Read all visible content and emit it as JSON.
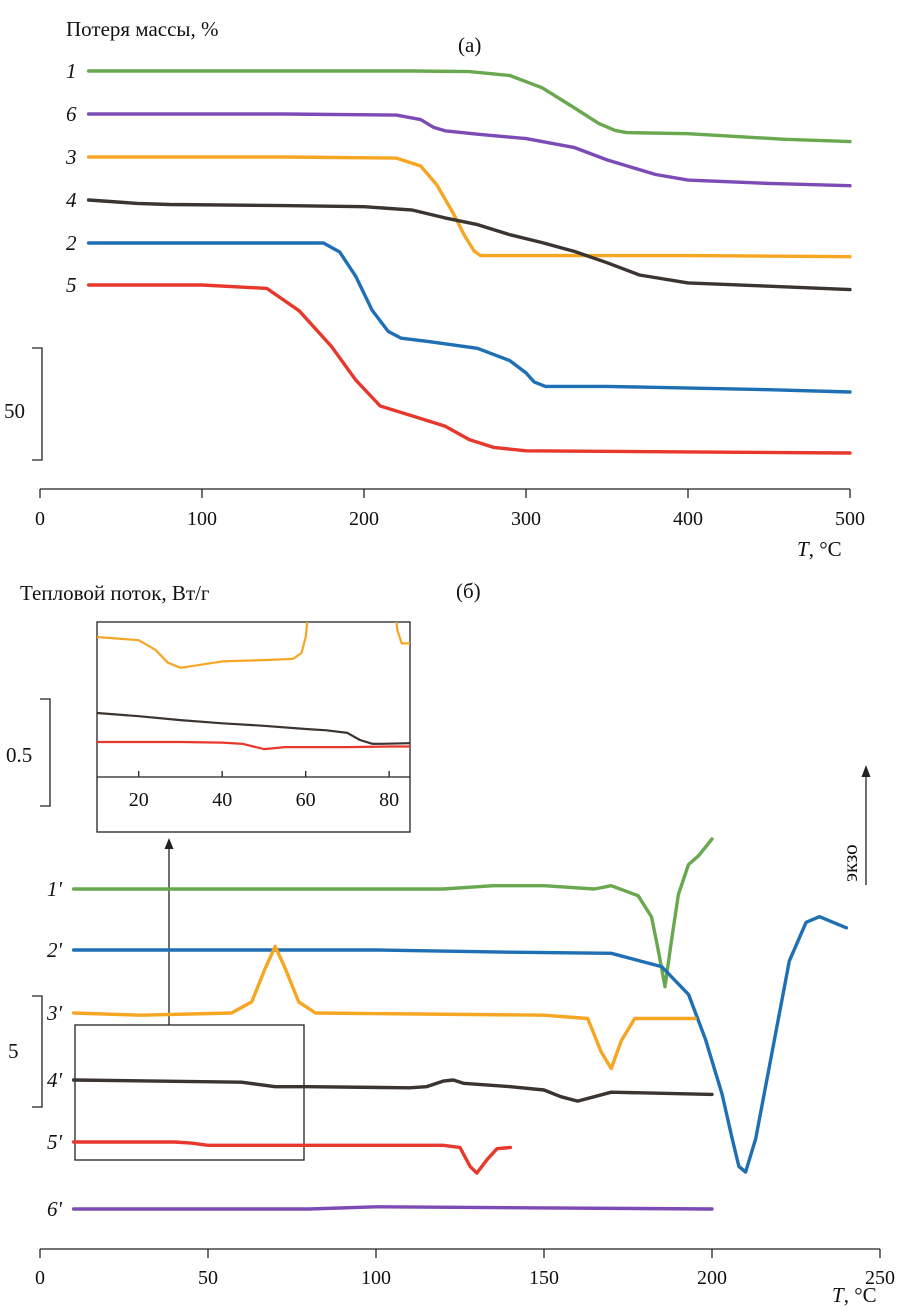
{
  "colors": {
    "green": "#6aa84f",
    "purple": "#7c4bb6",
    "orange": "#f6a623",
    "black": "#3b3431",
    "blue": "#1f6fb4",
    "red": "#e8372b"
  },
  "chart_data": [
    {
      "panel": "a",
      "type": "line",
      "panel_label": "(а)",
      "ylabel": "Потеря массы, %",
      "xlabel_var": "T",
      "xlabel_unit": ", °C",
      "xlim": [
        0,
        500
      ],
      "xticks": [
        0,
        100,
        200,
        300,
        400,
        500
      ],
      "scalebar_label": "50",
      "series": [
        {
          "name": "1",
          "color": "green",
          "x": [
            30,
            150,
            230,
            265,
            290,
            310,
            330,
            345,
            355,
            362,
            400,
            460,
            500
          ],
          "y": [
            0,
            0,
            0,
            -0.5,
            -4,
            -15,
            -33,
            -47,
            -53,
            -55,
            -56,
            -61,
            -63
          ]
        },
        {
          "name": "6",
          "color": "purple",
          "x": [
            30,
            150,
            220,
            235,
            243,
            250,
            270,
            300,
            330,
            350,
            380,
            400,
            450,
            500
          ],
          "y": [
            0,
            0,
            -1,
            -5,
            -12,
            -15,
            -18,
            -22,
            -30,
            -41,
            -54,
            -59,
            -62,
            -64
          ]
        },
        {
          "name": "3",
          "color": "orange",
          "x": [
            30,
            150,
            220,
            235,
            245,
            255,
            262,
            268,
            272,
            290,
            400,
            500
          ],
          "y": [
            0,
            0,
            -1,
            -8,
            -25,
            -50,
            -70,
            -84,
            -88,
            -88,
            -88,
            -89
          ]
        },
        {
          "name": "4",
          "color": "black",
          "x": [
            30,
            60,
            80,
            150,
            200,
            230,
            250,
            270,
            290,
            310,
            330,
            350,
            370,
            400,
            450,
            500
          ],
          "y": [
            0,
            -3,
            -4,
            -5,
            -6,
            -9,
            -16,
            -22,
            -31,
            -38,
            -46,
            -56,
            -67,
            -74,
            -77,
            -80
          ]
        },
        {
          "name": "2",
          "color": "blue",
          "x": [
            30,
            100,
            175,
            185,
            195,
            205,
            215,
            223,
            240,
            270,
            290,
            300,
            305,
            312,
            350,
            450,
            500
          ],
          "y": [
            0,
            0,
            0,
            -8,
            -30,
            -60,
            -79,
            -85,
            -88,
            -94,
            -105,
            -116,
            -124,
            -128,
            -128,
            -131,
            -133
          ]
        },
        {
          "name": "5",
          "color": "red",
          "x": [
            30,
            100,
            140,
            160,
            180,
            195,
            210,
            230,
            250,
            265,
            280,
            300,
            400,
            500
          ],
          "y": [
            0,
            0,
            -3,
            -23,
            -55,
            -85,
            -108,
            -117,
            -126,
            -138,
            -145,
            -148,
            -149,
            -150
          ]
        }
      ]
    },
    {
      "panel": "b",
      "type": "line",
      "panel_label": "(б)",
      "ylabel": "Тепловой поток, Вт/г",
      "xlabel_var": "T",
      "xlabel_unit": ", °C",
      "xlim": [
        0,
        250
      ],
      "xticks": [
        0,
        50,
        100,
        150,
        200,
        250
      ],
      "scalebar_label": "5",
      "exo_label": "экзо",
      "series": [
        {
          "name": "1'",
          "color": "green",
          "x": [
            10,
            120,
            135,
            150,
            165,
            170,
            178,
            182,
            184,
            186,
            188,
            190,
            193,
            196,
            200
          ],
          "y": [
            0,
            0,
            0.3,
            0.3,
            0,
            0.3,
            -0.6,
            -2.5,
            -5.5,
            -8.8,
            -4.5,
            -0.5,
            2.2,
            3,
            4.5
          ]
        },
        {
          "name": "2'",
          "color": "blue",
          "x": [
            10,
            100,
            140,
            170,
            185,
            193,
            198,
            203,
            206,
            208,
            210,
            213,
            218,
            223,
            228,
            232,
            236,
            240
          ],
          "y": [
            0,
            0,
            -0.2,
            -0.3,
            -1.5,
            -4,
            -8,
            -13,
            -17,
            -19.5,
            -20,
            -17,
            -9,
            -1,
            2.5,
            3,
            2.5,
            2
          ]
        },
        {
          "name": "3'",
          "color": "orange",
          "x": [
            10,
            30,
            57,
            63,
            67,
            70,
            73,
            77,
            82,
            150,
            163,
            167,
            170,
            173,
            177,
            190,
            195
          ],
          "y": [
            0,
            -0.2,
            0,
            1,
            4,
            6,
            4,
            1,
            0,
            -0.2,
            -0.5,
            -3.5,
            -5,
            -2.5,
            -0.5,
            -0.5,
            -0.5
          ]
        },
        {
          "name": "4'",
          "color": "black",
          "x": [
            10,
            60,
            70,
            80,
            110,
            115,
            120,
            123,
            126,
            140,
            150,
            155,
            160,
            165,
            170,
            200
          ],
          "y": [
            0,
            -0.2,
            -0.6,
            -0.6,
            -0.7,
            -0.6,
            -0.1,
            0,
            -0.3,
            -0.6,
            -0.9,
            -1.5,
            -1.9,
            -1.5,
            -1.1,
            -1.3
          ]
        },
        {
          "name": "5'",
          "color": "red",
          "x": [
            10,
            40,
            45,
            50,
            60,
            100,
            120,
            125,
            128,
            130,
            133,
            136,
            140
          ],
          "y": [
            0,
            0,
            -0.1,
            -0.3,
            -0.3,
            -0.3,
            -0.3,
            -0.5,
            -2.2,
            -2.8,
            -1.6,
            -0.6,
            -0.5
          ]
        },
        {
          "name": "6'",
          "color": "purple",
          "x": [
            10,
            80,
            100,
            150,
            200
          ],
          "y": [
            0,
            0,
            0.2,
            0.1,
            0
          ]
        }
      ],
      "inset": {
        "xlim": [
          10,
          85
        ],
        "xticks": [
          20,
          40,
          60,
          80
        ],
        "scalebar_label": "0.5",
        "series": [
          {
            "color": "orange",
            "x": [
              10,
              20,
              24,
              27,
              30,
              40,
              50,
              57,
              59,
              60,
              61,
              62,
              80,
              81,
              82,
              83,
              85
            ],
            "y": [
              0,
              -0.05,
              -0.2,
              -0.4,
              -0.48,
              -0.38,
              -0.36,
              -0.34,
              -0.25,
              0,
              0.6,
              1.5,
              1.5,
              0.6,
              0.1,
              -0.1,
              -0.1
            ]
          },
          {
            "color": "black",
            "x": [
              10,
              20,
              30,
              40,
              50,
              60,
              65,
              70,
              73,
              76,
              78,
              85
            ],
            "y": [
              0,
              -0.05,
              -0.11,
              -0.16,
              -0.2,
              -0.25,
              -0.27,
              -0.31,
              -0.42,
              -0.48,
              -0.48,
              -0.47
            ]
          },
          {
            "color": "red",
            "x": [
              10,
              20,
              30,
              40,
              45,
              48,
              50,
              52,
              55,
              60,
              70,
              80,
              85
            ],
            "y": [
              0,
              0,
              0,
              -0.01,
              -0.03,
              -0.08,
              -0.11,
              -0.1,
              -0.08,
              -0.08,
              -0.08,
              -0.07,
              -0.07
            ]
          }
        ]
      }
    }
  ]
}
